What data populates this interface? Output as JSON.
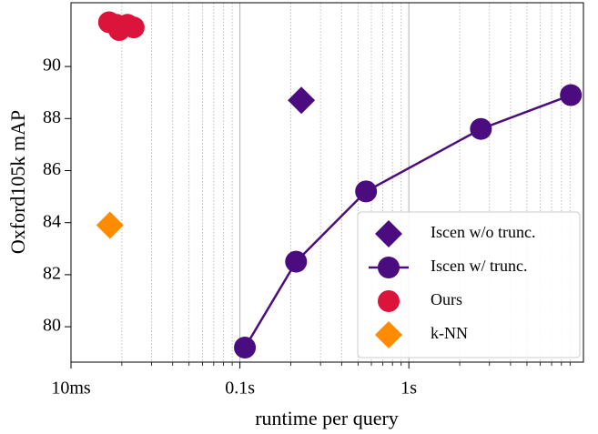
{
  "chart_data": {
    "type": "scatter",
    "x_label": "runtime per query",
    "y_label": "Oxford105k mAP",
    "x_log": true,
    "xlim": [
      0.01,
      10.8
    ],
    "ylim": [
      78.64,
      92.45
    ],
    "xticks": [
      {
        "value": 0.01,
        "label": "10ms"
      },
      {
        "value": 0.1,
        "label": "0.1s"
      },
      {
        "value": 1,
        "label": "1s"
      }
    ],
    "x_minor_ticks": [
      0.02,
      0.03,
      0.04,
      0.05,
      0.06,
      0.07,
      0.08,
      0.09,
      0.2,
      0.3,
      0.4,
      0.5,
      0.6,
      0.7,
      0.8,
      0.9,
      2,
      3,
      4,
      5,
      6,
      7,
      8,
      9
    ],
    "yticks": [
      80,
      82,
      84,
      86,
      88,
      90
    ],
    "grid": true,
    "legend_position": "lower right",
    "series": [
      {
        "name": "Iscen w/o trunc.",
        "color": "#4b0c80",
        "marker": "diamond",
        "line": false,
        "x": [
          0.231
        ],
        "y": [
          88.7
        ]
      },
      {
        "name": "Iscen w/ trunc.",
        "color": "#4b0c80",
        "marker": "circle",
        "line": true,
        "x": [
          0.107,
          0.215,
          0.558,
          2.67,
          9.1
        ],
        "y": [
          79.2,
          82.5,
          85.2,
          87.6,
          88.9
        ]
      },
      {
        "name": "Ours",
        "color": "#dc143c",
        "marker": "circle",
        "line": false,
        "x": [
          0.0168,
          0.0186,
          0.0193,
          0.0216,
          0.0235
        ],
        "y": [
          91.7,
          91.6,
          91.4,
          91.6,
          91.5
        ]
      },
      {
        "name": "k-NN",
        "color": "#ff8c00",
        "marker": "diamond",
        "line": false,
        "x": [
          0.017
        ],
        "y": [
          83.9
        ]
      }
    ]
  }
}
